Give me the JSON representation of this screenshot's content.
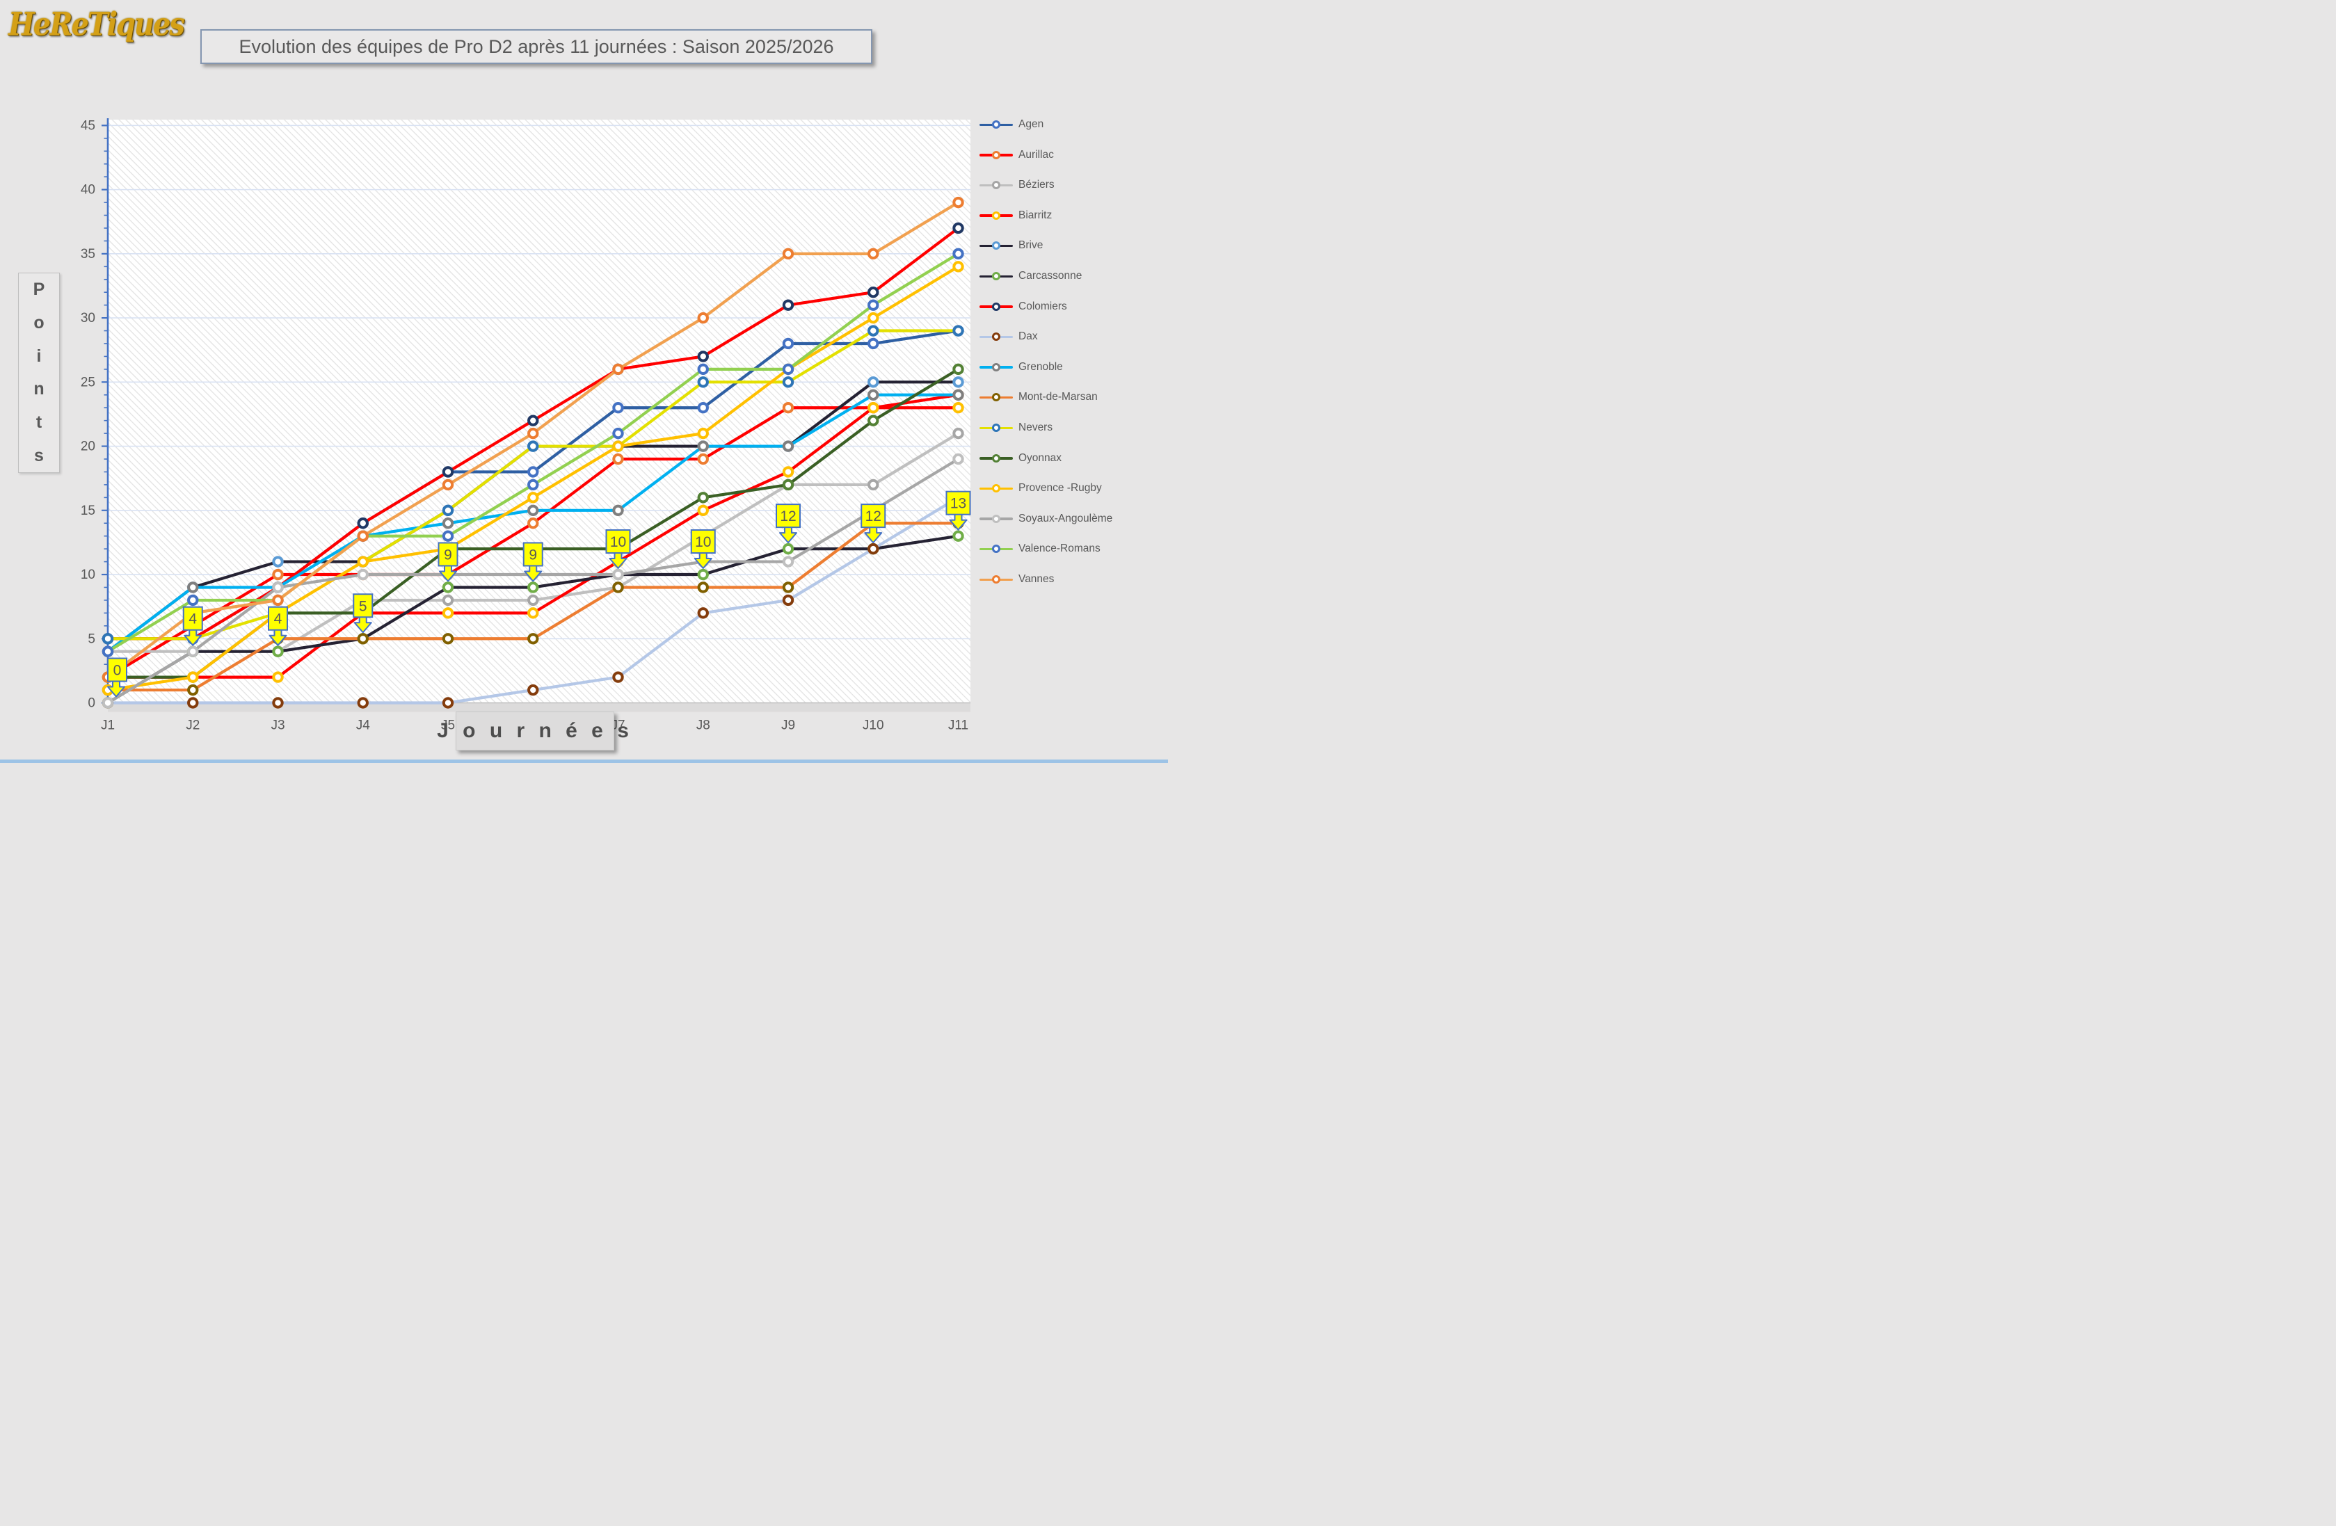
{
  "logo": {
    "text": "HeReTiques"
  },
  "title": {
    "text": "Evolution des équipes de Pro D2 après 11 journées : Saison 2025/2026"
  },
  "y_axis": {
    "title": "Points",
    "title_letters": [
      "P",
      "o",
      "i",
      "n",
      "t",
      "s"
    ],
    "tick_labels": [
      "0",
      "5",
      "10",
      "15",
      "20",
      "25",
      "30",
      "35",
      "40",
      "45"
    ]
  },
  "x_axis": {
    "title": "J o u r n é e s"
  },
  "chart_data": {
    "type": "line",
    "x": [
      "J1",
      "J2",
      "J3",
      "J4",
      "J5",
      "J6",
      "J7",
      "J8",
      "J9",
      "J10",
      "J11"
    ],
    "ylabel": "Points",
    "xlabel": "Journées",
    "ylim": [
      0,
      45
    ],
    "grid": "horizontal every 5, pale blue",
    "legend_position": "right",
    "series": [
      {
        "name": "Agen",
        "line_color": "#2E5FA3",
        "marker_color": "#4472C4",
        "values": [
          5,
          5,
          9,
          14,
          18,
          18,
          23,
          23,
          28,
          28,
          29
        ]
      },
      {
        "name": "Aurillac",
        "line_color": "#FF0000",
        "marker_color": "#ED7D31",
        "values": [
          2,
          6,
          10,
          10,
          10,
          14,
          19,
          19,
          23,
          23,
          24
        ]
      },
      {
        "name": "Béziers",
        "line_color": "#BFBFBF",
        "marker_color": "#A6A6A6",
        "values": [
          4,
          4,
          4,
          8,
          8,
          8,
          9,
          13,
          17,
          17,
          21
        ]
      },
      {
        "name": "Biarritz",
        "line_color": "#FF0000",
        "marker_color": "#FFC000",
        "values": [
          2,
          2,
          2,
          7,
          7,
          7,
          11,
          15,
          18,
          23,
          23
        ]
      },
      {
        "name": "Brive",
        "line_color": "#252233",
        "marker_color": "#5B9BD5",
        "values": [
          4,
          9,
          11,
          11,
          15,
          20,
          20,
          20,
          20,
          25,
          25
        ]
      },
      {
        "name": "Carcassonne",
        "line_color": "#252233",
        "marker_color": "#70AD47",
        "values": [
          0,
          4,
          4,
          5,
          9,
          9,
          10,
          10,
          12,
          12,
          13
        ]
      },
      {
        "name": "Colomiers",
        "line_color": "#FF0000",
        "marker_color": "#203864",
        "values": [
          5,
          5,
          9,
          14,
          18,
          22,
          26,
          27,
          31,
          32,
          37
        ]
      },
      {
        "name": "Dax",
        "line_color": "#B4C7E7",
        "marker_color": "#843C0C",
        "values": [
          0,
          0,
          0,
          0,
          0,
          1,
          2,
          7,
          8,
          12,
          16
        ]
      },
      {
        "name": "Grenoble",
        "line_color": "#00B0F0",
        "marker_color": "#7F7F7F",
        "values": [
          4,
          9,
          9,
          13,
          14,
          15,
          15,
          20,
          20,
          24,
          24
        ]
      },
      {
        "name": "Mont-de-Marsan",
        "line_color": "#ED7D31",
        "marker_color": "#806000",
        "values": [
          1,
          1,
          5,
          5,
          5,
          5,
          9,
          9,
          9,
          14,
          14
        ]
      },
      {
        "name": "Nevers",
        "line_color": "#E3E000",
        "marker_color": "#2E75B6",
        "values": [
          5,
          5,
          7,
          11,
          15,
          20,
          20,
          25,
          25,
          29,
          29
        ]
      },
      {
        "name": "Oyonnax",
        "line_color": "#3A5F24",
        "marker_color": "#538135",
        "values": [
          2,
          2,
          7,
          7,
          12,
          12,
          12,
          16,
          17,
          22,
          26
        ]
      },
      {
        "name": "Provence -Rugby",
        "line_color": "#FFC000",
        "marker_color": "#FFC000",
        "values": [
          1,
          2,
          7,
          11,
          12,
          16,
          20,
          21,
          26,
          30,
          34
        ]
      },
      {
        "name": "Soyaux-Angoulème",
        "line_color": "#A6A6A6",
        "marker_color": "#BFBFBF",
        "values": [
          0,
          4,
          9,
          10,
          10,
          10,
          10,
          11,
          11,
          15,
          19
        ]
      },
      {
        "name": "Valence-Romans",
        "line_color": "#92D050",
        "marker_color": "#4472C4",
        "values": [
          4,
          8,
          8,
          13,
          13,
          17,
          21,
          26,
          26,
          31,
          35
        ]
      },
      {
        "name": "Vannes",
        "line_color": "#F1A04F",
        "marker_color": "#ED7D31",
        "values": [
          2,
          7,
          8,
          13,
          17,
          21,
          26,
          30,
          35,
          35,
          39
        ]
      }
    ],
    "callouts": {
      "tracked_series": "Carcassonne",
      "labels": [
        "0",
        "4",
        "4",
        "5",
        "9",
        "9",
        "10",
        "10",
        "12",
        "12",
        "13"
      ],
      "style": "yellow box, blue border, down arrow to marker"
    }
  },
  "colors": {
    "page_bg": "#E7E6E6",
    "plot_bg": "#FFFFFF",
    "gridline": "#D9E2F3",
    "axis_line": "#4472C4",
    "tick_text": "#595959",
    "callout_fill": "#FFFF00",
    "callout_border": "#4472C4"
  }
}
